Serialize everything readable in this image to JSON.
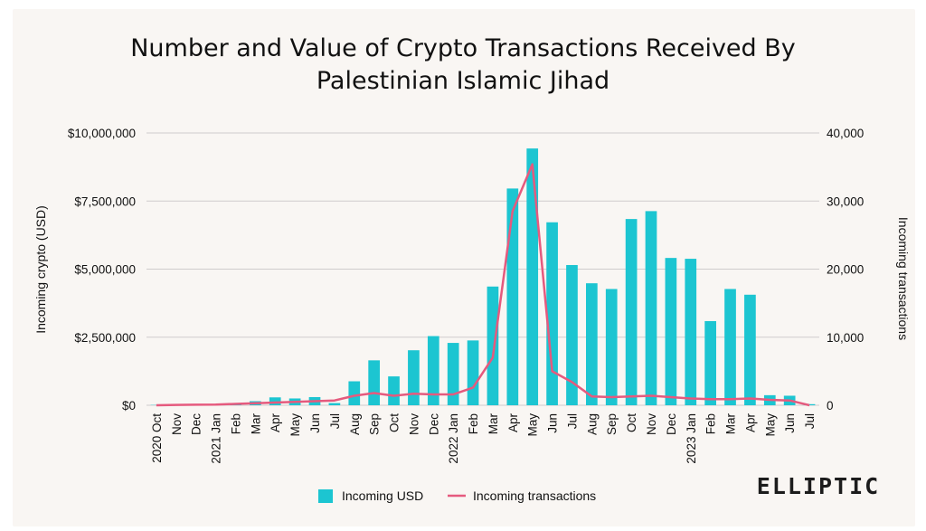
{
  "colors": {
    "bar": "#1cc5d1",
    "line": "#e55a7e",
    "grid": "#cfcccc",
    "text": "#111111"
  },
  "brand": "ELLIPTIC",
  "chart_data": {
    "type": "bar",
    "title_lines": [
      "Number and Value of Crypto Transactions Received By",
      "Palestinian Islamic Jihad"
    ],
    "categories": [
      "2020 Oct",
      "Nov",
      "Dec",
      "2021 Jan",
      "Feb",
      "Mar",
      "Apr",
      "May",
      "Jun",
      "Jul",
      "Aug",
      "Sep",
      "Oct",
      "Nov",
      "Dec",
      "2022 Jan",
      "Feb",
      "Mar",
      "Apr",
      "May",
      "Jun",
      "Jul",
      "Aug",
      "Sep",
      "Oct",
      "Nov",
      "Dec",
      "2023 Jan",
      "Feb",
      "Mar",
      "Apr",
      "May",
      "Jun",
      "Jul"
    ],
    "ylabel": "Incoming crypto (USD)",
    "y2label": "Incoming transactions",
    "ylim": [
      0,
      10000000
    ],
    "y2lim": [
      0,
      40000
    ],
    "yticks": [
      "$0",
      "$2,500,000",
      "$5,000,000",
      "$7,500,000",
      "$10,000,000"
    ],
    "y2ticks": [
      "0",
      "10,000",
      "20,000",
      "30,000",
      "40,000"
    ],
    "grid": true,
    "legend_position": "bottom",
    "series": [
      {
        "name": "Incoming USD",
        "type": "bar",
        "axis": "left",
        "values": [
          10000,
          10000,
          10000,
          10000,
          20000,
          150000,
          290000,
          250000,
          300000,
          80000,
          880000,
          1650000,
          1060000,
          2020000,
          2540000,
          2290000,
          2380000,
          4360000,
          7960000,
          9430000,
          6720000,
          5150000,
          4480000,
          4270000,
          6840000,
          7130000,
          5410000,
          5380000,
          3090000,
          4270000,
          4060000,
          370000,
          350000,
          40000
        ]
      },
      {
        "name": "Incoming transactions",
        "type": "line",
        "axis": "right",
        "values": [
          0,
          50,
          80,
          100,
          200,
          300,
          400,
          500,
          600,
          700,
          1400,
          1800,
          1400,
          1700,
          1600,
          1600,
          2600,
          7000,
          28500,
          35400,
          5000,
          3400,
          1300,
          1200,
          1300,
          1400,
          1200,
          1000,
          900,
          900,
          1000,
          800,
          700,
          0
        ]
      }
    ]
  }
}
